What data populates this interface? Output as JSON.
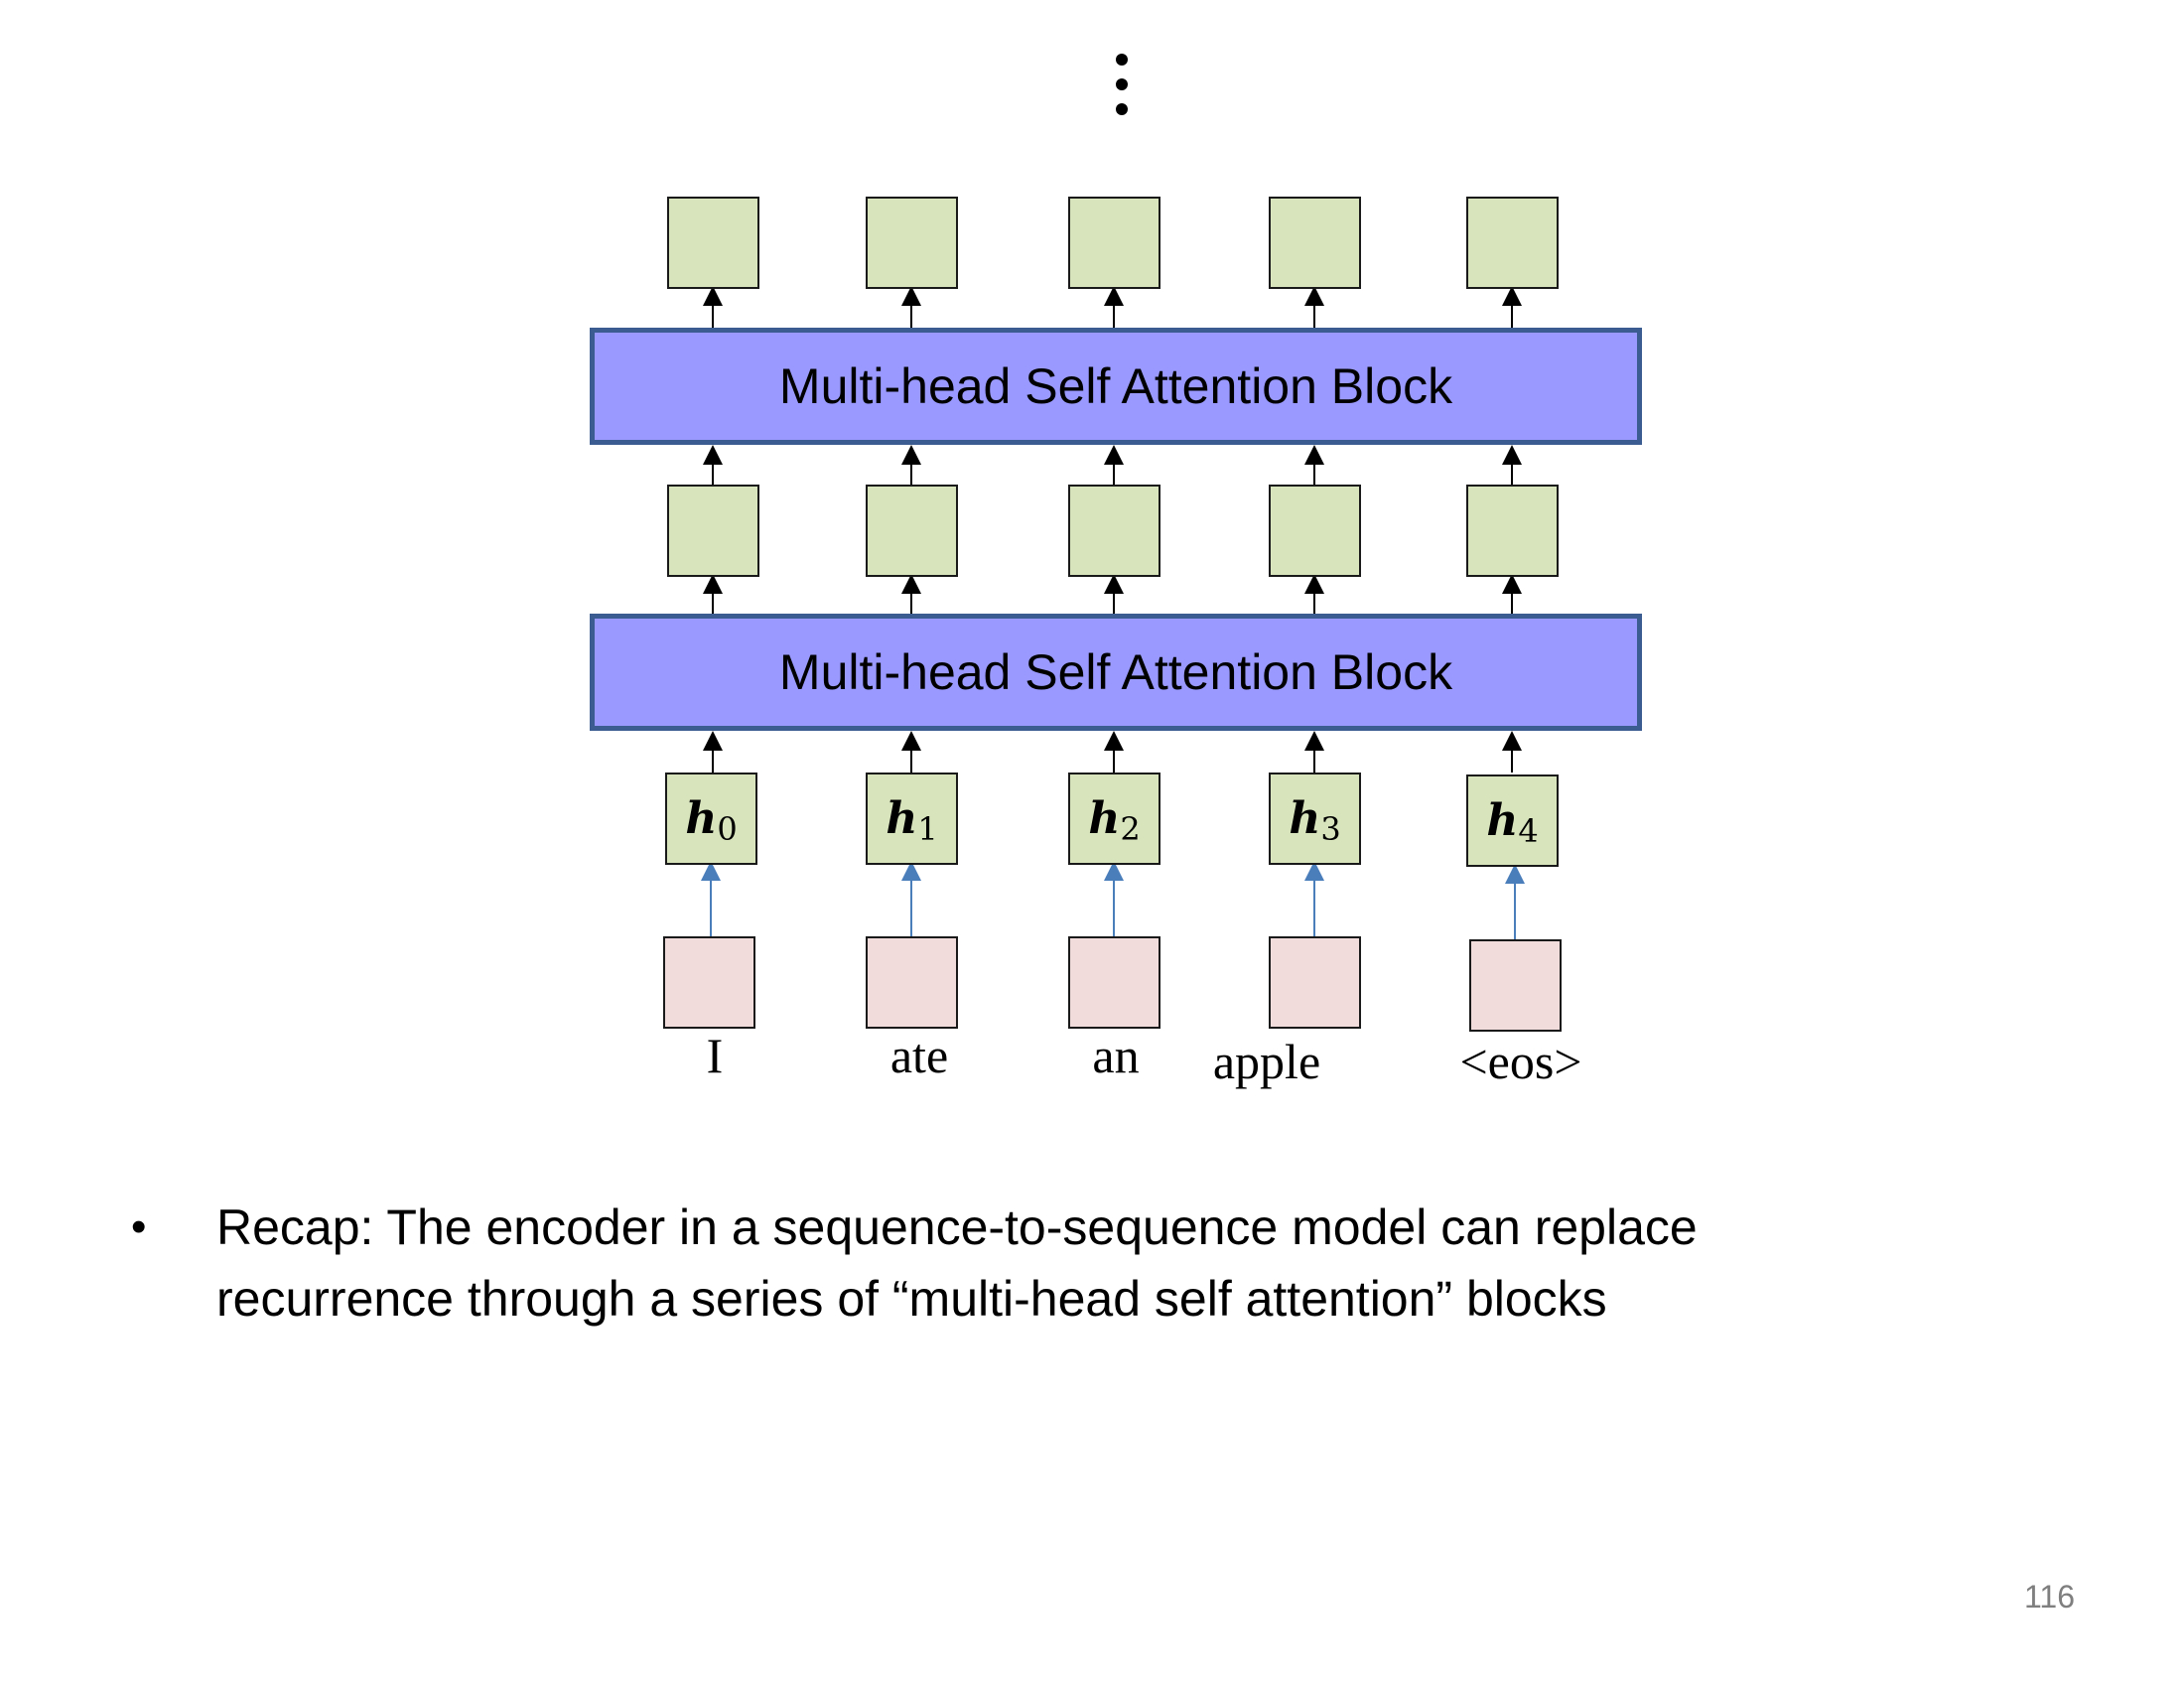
{
  "diagram": {
    "blocks": [
      {
        "label": "Multi-head Self Attention Block"
      },
      {
        "label": "Multi-head Self Attention Block"
      }
    ],
    "hidden_labels": [
      {
        "base": "h",
        "sub": "0"
      },
      {
        "base": "h",
        "sub": "1"
      },
      {
        "base": "h",
        "sub": "2"
      },
      {
        "base": "h",
        "sub": "3"
      },
      {
        "base": "h",
        "sub": "4"
      }
    ],
    "input_words": [
      "I",
      "ate",
      "an",
      "apple",
      "<eos>"
    ],
    "colors": {
      "output_square": "#d7e4bc",
      "input_square": "#f2dbdb",
      "block_fill": "#9999ff",
      "block_border": "#3b5c91",
      "input_arrow": "#4a7ebb",
      "arrow": "#000000"
    }
  },
  "bullet": {
    "symbol": "•",
    "line1": "Recap: The encoder in a sequence-to-sequence model can replace",
    "line2": "recurrence through a series of “multi-head self attention” blocks"
  },
  "page_number": "116"
}
